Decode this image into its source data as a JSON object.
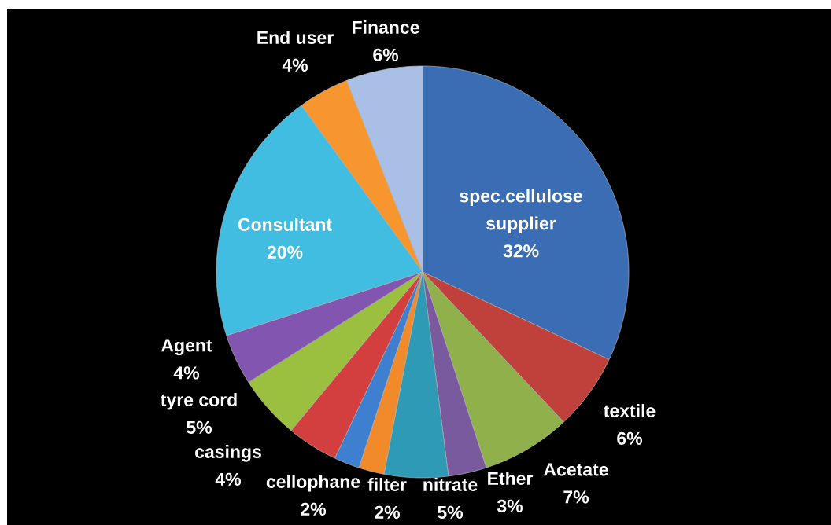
{
  "chart_data": {
    "type": "pie",
    "categories": [
      "spec.cellulose supplier",
      "textile",
      "Acetate",
      "Ether",
      "nitrate",
      "filter",
      "cellophane",
      "casings",
      "tyre cord",
      "Agent",
      "Consultant",
      "End user",
      "Finance"
    ],
    "values": [
      32,
      6,
      7,
      3,
      5,
      2,
      2,
      4,
      5,
      4,
      20,
      4,
      6
    ],
    "value_labels": [
      "32%",
      "6%",
      "7%",
      "3%",
      "5%",
      "2%",
      "2%",
      "4%",
      "5%",
      "4%",
      "20%",
      "4%",
      "6%"
    ],
    "colors": [
      "#3a6db3",
      "#c0413c",
      "#8fb04a",
      "#7a5a9e",
      "#2e9ab5",
      "#f08a2a",
      "#3f7fd0",
      "#d33f3f",
      "#9bc040",
      "#8256b0",
      "#40bde0",
      "#f7962f",
      "#a9bfe6"
    ]
  }
}
